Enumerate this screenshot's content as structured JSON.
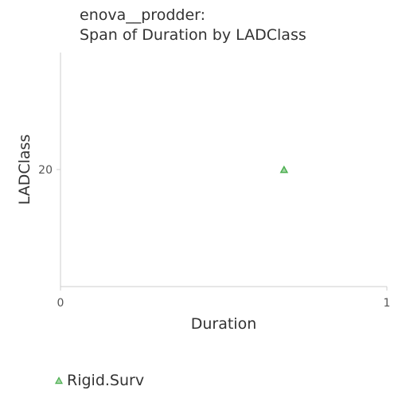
{
  "chart_data": {
    "type": "scatter",
    "title_lines": [
      "enova__prodder:",
      "Span of Duration by LADClass"
    ],
    "xlabel": "Duration",
    "ylabel": "LADClass",
    "xlim": [
      0,
      1
    ],
    "ylim": [
      0,
      40
    ],
    "x_ticks": [
      0,
      1
    ],
    "y_ticks": [
      20
    ],
    "grid": false,
    "legend_position": "bottom-left",
    "series": [
      {
        "name": "Rigid.Surv",
        "marker": "triangle",
        "color": "#4caf50",
        "fill": "#a5d6a7",
        "points": [
          {
            "x": 0.685,
            "y": 20
          }
        ]
      }
    ]
  }
}
